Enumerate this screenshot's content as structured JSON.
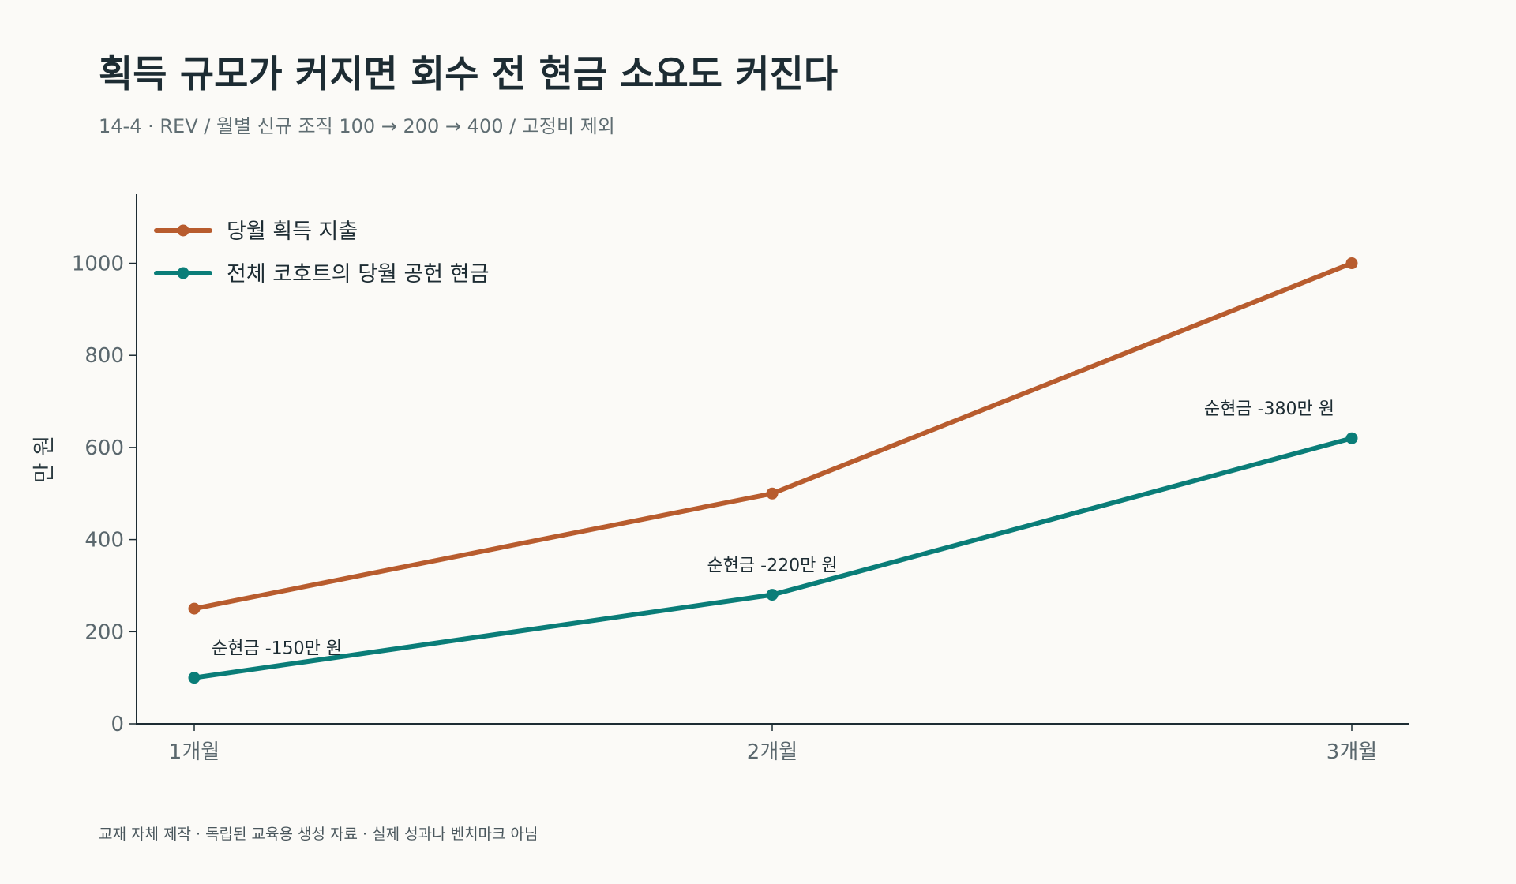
{
  "title": "획득 규모가 커지면 회수 전 현금 소요도 커진다",
  "subtitle": "14-4 · REV / 월별 신규 조직 100 → 200 → 400 / 고정비 제외",
  "footnote": "교재 자체 제작 · 독립된 교육용 생성 자료 · 실제 성과나 벤치마크 아님",
  "colors": {
    "background": "#fbfaf7",
    "acquisition": "#b85c2e",
    "cohort_cash": "#0a7d78",
    "axis": "#1d2c33"
  },
  "chart_data": {
    "type": "line",
    "title": "획득 규모가 커지면 회수 전 현금 소요도 커진다",
    "subtitle": "14-4 · REV / 월별 신규 조직 100 → 200 → 400 / 고정비 제외",
    "xlabel": "",
    "ylabel": "만 원",
    "categories": [
      "1개월",
      "2개월",
      "3개월"
    ],
    "ylim": [
      0,
      1150
    ],
    "yticks": [
      0,
      200,
      400,
      600,
      800,
      1000
    ],
    "grid": false,
    "legend_position": "top-left",
    "series": [
      {
        "name": "당월 획득 지출",
        "color": "#b85c2e",
        "values": [
          250,
          500,
          1000
        ]
      },
      {
        "name": "전체 코호트의 당월 공헌 현금",
        "color": "#0a7d78",
        "values": [
          100,
          280,
          620
        ]
      }
    ],
    "annotations": [
      {
        "text": "순현금 -150만 원",
        "x": "1개월",
        "y": 100
      },
      {
        "text": "순현금 -220만 원",
        "x": "2개월",
        "y": 280
      },
      {
        "text": "순현금 -380만 원",
        "x": "3개월",
        "y": 620
      }
    ]
  }
}
